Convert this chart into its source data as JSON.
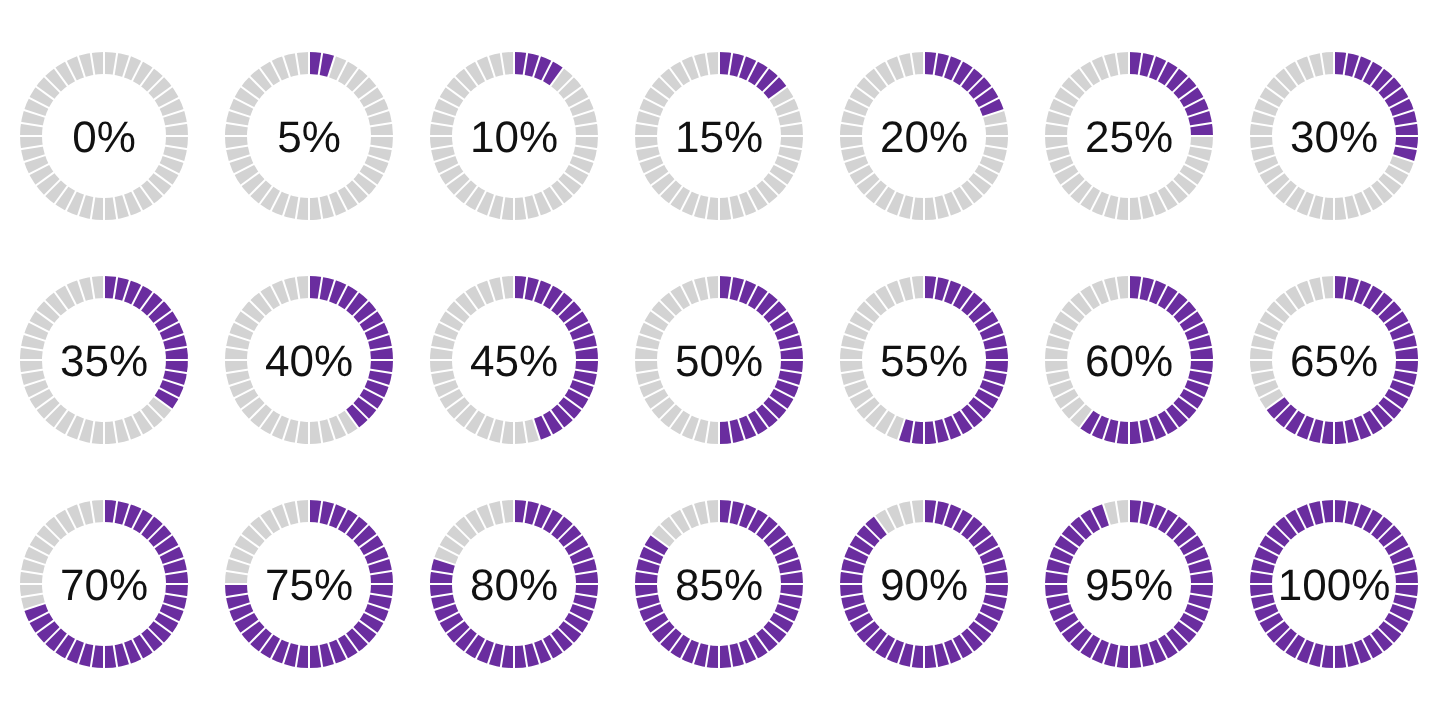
{
  "chart_data": [
    {
      "type": "donut",
      "categories": [
        null,
        null
      ],
      "values": [
        0,
        100
      ],
      "colors": [
        "#6a2d9f",
        "#d3d3d3"
      ],
      "annotations": [
        "0%"
      ]
    },
    {
      "type": "donut",
      "categories": [
        null,
        null
      ],
      "values": [
        5,
        95
      ],
      "colors": [
        "#6a2d9f",
        "#d3d3d3"
      ],
      "annotations": [
        "5%"
      ]
    },
    {
      "type": "donut",
      "categories": [
        null,
        null
      ],
      "values": [
        10,
        90
      ],
      "colors": [
        "#6a2d9f",
        "#d3d3d3"
      ],
      "annotations": [
        "10%"
      ]
    },
    {
      "type": "donut",
      "categories": [
        null,
        null
      ],
      "values": [
        15,
        85
      ],
      "colors": [
        "#6a2d9f",
        "#d3d3d3"
      ],
      "annotations": [
        "15%"
      ]
    },
    {
      "type": "donut",
      "categories": [
        null,
        null
      ],
      "values": [
        20,
        80
      ],
      "colors": [
        "#6a2d9f",
        "#d3d3d3"
      ],
      "annotations": [
        "20%"
      ]
    },
    {
      "type": "donut",
      "categories": [
        null,
        null
      ],
      "values": [
        25,
        75
      ],
      "colors": [
        "#6a2d9f",
        "#d3d3d3"
      ],
      "annotations": [
        "25%"
      ]
    },
    {
      "type": "donut",
      "categories": [
        null,
        null
      ],
      "values": [
        30,
        70
      ],
      "colors": [
        "#6a2d9f",
        "#d3d3d3"
      ],
      "annotations": [
        "30%"
      ]
    },
    {
      "type": "donut",
      "categories": [
        null,
        null
      ],
      "values": [
        35,
        65
      ],
      "colors": [
        "#6a2d9f",
        "#d3d3d3"
      ],
      "annotations": [
        "35%"
      ]
    },
    {
      "type": "donut",
      "categories": [
        null,
        null
      ],
      "values": [
        40,
        60
      ],
      "colors": [
        "#6a2d9f",
        "#d3d3d3"
      ],
      "annotations": [
        "40%"
      ]
    },
    {
      "type": "donut",
      "categories": [
        null,
        null
      ],
      "values": [
        45,
        55
      ],
      "colors": [
        "#6a2d9f",
        "#d3d3d3"
      ],
      "annotations": [
        "45%"
      ]
    },
    {
      "type": "donut",
      "categories": [
        null,
        null
      ],
      "values": [
        50,
        50
      ],
      "colors": [
        "#6a2d9f",
        "#d3d3d3"
      ],
      "annotations": [
        "50%"
      ]
    },
    {
      "type": "donut",
      "categories": [
        null,
        null
      ],
      "values": [
        55,
        45
      ],
      "colors": [
        "#6a2d9f",
        "#d3d3d3"
      ],
      "annotations": [
        "55%"
      ]
    },
    {
      "type": "donut",
      "categories": [
        null,
        null
      ],
      "values": [
        60,
        40
      ],
      "colors": [
        "#6a2d9f",
        "#d3d3d3"
      ],
      "annotations": [
        "60%"
      ]
    },
    {
      "type": "donut",
      "categories": [
        null,
        null
      ],
      "values": [
        65,
        35
      ],
      "colors": [
        "#6a2d9f",
        "#d3d3d3"
      ],
      "annotations": [
        "65%"
      ]
    },
    {
      "type": "donut",
      "categories": [
        null,
        null
      ],
      "values": [
        70,
        30
      ],
      "colors": [
        "#6a2d9f",
        "#d3d3d3"
      ],
      "annotations": [
        "70%"
      ]
    },
    {
      "type": "donut",
      "categories": [
        null,
        null
      ],
      "values": [
        75,
        25
      ],
      "colors": [
        "#6a2d9f",
        "#d3d3d3"
      ],
      "annotations": [
        "75%"
      ]
    },
    {
      "type": "donut",
      "categories": [
        null,
        null
      ],
      "values": [
        80,
        20
      ],
      "colors": [
        "#6a2d9f",
        "#d3d3d3"
      ],
      "annotations": [
        "80%"
      ]
    },
    {
      "type": "donut",
      "categories": [
        null,
        null
      ],
      "values": [
        85,
        15
      ],
      "colors": [
        "#6a2d9f",
        "#d3d3d3"
      ],
      "annotations": [
        "85%"
      ]
    },
    {
      "type": "donut",
      "categories": [
        null,
        null
      ],
      "values": [
        90,
        10
      ],
      "colors": [
        "#6a2d9f",
        "#d3d3d3"
      ],
      "annotations": [
        "90%"
      ]
    },
    {
      "type": "donut",
      "categories": [
        null,
        null
      ],
      "values": [
        95,
        5
      ],
      "colors": [
        "#6a2d9f",
        "#d3d3d3"
      ],
      "annotations": [
        "95%"
      ]
    },
    {
      "type": "donut",
      "categories": [
        null,
        null
      ],
      "values": [
        100,
        0
      ],
      "colors": [
        "#6a2d9f",
        "#d3d3d3"
      ],
      "annotations": [
        "100%"
      ]
    }
  ]
}
